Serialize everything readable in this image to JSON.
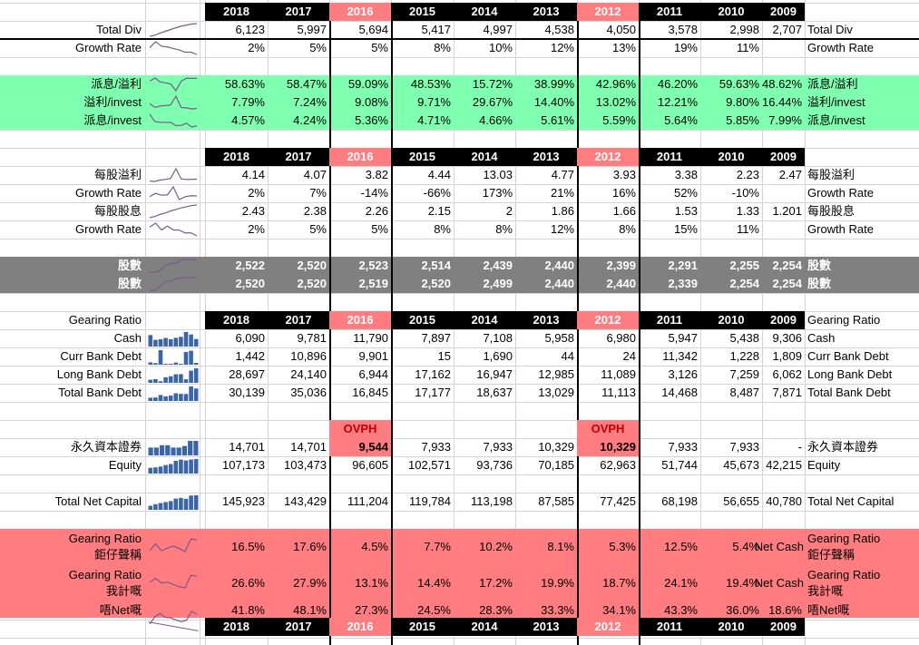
{
  "colors": {
    "header_bg": "#000000",
    "header_fg": "#ffffff",
    "highlight_year": "#ff7c80",
    "green_band": "#7fffb0",
    "gray_band": "#808080",
    "red_band": "#ff7c80",
    "spark_line": "#7a5a8a",
    "spark_bar": "#3a66a8"
  },
  "years": [
    "2018",
    "2017",
    "2016",
    "2015",
    "2014",
    "2013",
    "2012",
    "2011",
    "2010",
    "2009"
  ],
  "highlight_years": [
    "2016",
    "2012"
  ],
  "rows": [
    {
      "key": "total_div",
      "label": "Total Div",
      "right": "Total Div",
      "spark": "line",
      "values": [
        "6,123",
        "5,997",
        "5,694",
        "5,417",
        "4,997",
        "4,538",
        "4,050",
        "3,578",
        "2,998",
        "2,707"
      ]
    },
    {
      "key": "div_growth",
      "label": "Growth Rate",
      "right": "Growth Rate",
      "spark": "line",
      "values": [
        "2%",
        "5%",
        "5%",
        "8%",
        "10%",
        "12%",
        "13%",
        "19%",
        "11%",
        ""
      ]
    },
    {
      "key": "payout",
      "label": "派息/溢利",
      "right": "派息/溢利",
      "spark": "line",
      "band": "green",
      "values": [
        "58.63%",
        "58.47%",
        "59.09%",
        "48.53%",
        "15.72%",
        "38.99%",
        "42.96%",
        "46.20%",
        "59.63%",
        "48.62%"
      ]
    },
    {
      "key": "profit_invest",
      "label": "溢利/invest",
      "right": "溢利/invest",
      "spark": "line",
      "band": "green",
      "values": [
        "7.79%",
        "7.24%",
        "9.08%",
        "9.71%",
        "29.67%",
        "14.40%",
        "13.02%",
        "12.21%",
        "9.80%",
        "16.44%"
      ]
    },
    {
      "key": "div_invest",
      "label": "派息/invest",
      "right": "派息/invest",
      "spark": "line",
      "band": "green",
      "values": [
        "4.57%",
        "4.24%",
        "5.36%",
        "4.71%",
        "4.66%",
        "5.61%",
        "5.59%",
        "5.64%",
        "5.85%",
        "7.99%"
      ]
    },
    {
      "key": "eps",
      "label": "每股溢利",
      "right": "每股溢利",
      "spark": "line",
      "values": [
        "4.14",
        "4.07",
        "3.82",
        "4.44",
        "13.03",
        "4.77",
        "3.93",
        "3.38",
        "2.23",
        "2.47"
      ]
    },
    {
      "key": "eps_growth",
      "label": "Growth Rate",
      "right": "Growth Rate",
      "spark": "line",
      "values": [
        "2%",
        "7%",
        "-14%",
        "-66%",
        "173%",
        "21%",
        "16%",
        "52%",
        "-10%",
        ""
      ]
    },
    {
      "key": "dps",
      "label": "每股股息",
      "right": "每股股息",
      "spark": "line",
      "values": [
        "2.43",
        "2.38",
        "2.26",
        "2.15",
        "2",
        "1.86",
        "1.66",
        "1.53",
        "1.33",
        "1.201"
      ]
    },
    {
      "key": "dps_growth",
      "label": "Growth Rate",
      "right": "Growth Rate",
      "spark": "line",
      "values": [
        "2%",
        "5%",
        "5%",
        "8%",
        "8%",
        "12%",
        "8%",
        "15%",
        "11%",
        ""
      ]
    },
    {
      "key": "shares1",
      "label": "股數",
      "right": "股數",
      "spark": "line",
      "band": "gray",
      "values": [
        "2,522",
        "2,520",
        "2,523",
        "2,514",
        "2,439",
        "2,440",
        "2,399",
        "2,291",
        "2,255",
        "2,254"
      ]
    },
    {
      "key": "shares2",
      "label": "股數",
      "right": "股數",
      "spark": "line",
      "band": "gray",
      "values": [
        "2,520",
        "2,520",
        "2,519",
        "2,520",
        "2,499",
        "2,440",
        "2,440",
        "2,339",
        "2,254",
        "2,254"
      ]
    },
    {
      "key": "cash",
      "label": "Cash",
      "right": "Cash",
      "spark": "bar",
      "values": [
        "6,090",
        "9,781",
        "11,790",
        "7,897",
        "7,108",
        "5,958",
        "6,980",
        "5,947",
        "5,438",
        "9,306"
      ]
    },
    {
      "key": "curr_debt",
      "label": "Curr Bank Debt",
      "right": "Curr Bank Debt",
      "spark": "bar",
      "values": [
        "1,442",
        "10,896",
        "9,901",
        "15",
        "1,690",
        "44",
        "24",
        "11,342",
        "1,228",
        "1,809"
      ]
    },
    {
      "key": "long_debt",
      "label": "Long Bank Debt",
      "right": "Long Bank Debt",
      "spark": "bar",
      "values": [
        "28,697",
        "24,140",
        "6,944",
        "17,162",
        "16,947",
        "12,985",
        "11,089",
        "3,126",
        "7,259",
        "6,062"
      ]
    },
    {
      "key": "total_debt",
      "label": "Total Bank Debt",
      "right": "Total Bank Debt",
      "spark": "bar",
      "values": [
        "30,139",
        "35,036",
        "16,845",
        "17,177",
        "18,637",
        "13,029",
        "11,113",
        "14,468",
        "8,487",
        "7,871"
      ]
    },
    {
      "key": "perp",
      "label": "永久資本證券",
      "right": "永久資本證券",
      "spark": "bar",
      "values": [
        "14,701",
        "14,701",
        "9,544",
        "7,933",
        "7,933",
        "10,329",
        "10,329",
        "7,933",
        "7,933",
        "-"
      ]
    },
    {
      "key": "equity",
      "label": "Equity",
      "right": "Equity",
      "spark": "bar",
      "values": [
        "107,173",
        "103,473",
        "96,605",
        "102,571",
        "93,736",
        "70,185",
        "62,963",
        "51,744",
        "45,673",
        "42,215"
      ]
    },
    {
      "key": "net_capital",
      "label": "Total Net Capital",
      "right": "Total Net Capital",
      "spark": "bar",
      "values": [
        "145,923",
        "143,429",
        "111,204",
        "119,784",
        "113,198",
        "87,585",
        "77,425",
        "68,198",
        "56,655",
        "40,780"
      ]
    },
    {
      "key": "gear1",
      "label": "Gearing Ratio 鉅仔聲稱",
      "right": "Gearing Ratio 鉅仔聲稱",
      "spark": "line",
      "band": "red",
      "values": [
        "16.5%",
        "17.6%",
        "4.5%",
        "7.7%",
        "10.2%",
        "8.1%",
        "5.3%",
        "12.5%",
        "5.4%",
        ""
      ]
    },
    {
      "key": "gear2",
      "label": "Gearing Ratio 我計嘅",
      "right": "Gearing Ratio 我計嘅",
      "spark": "line",
      "band": "red",
      "values": [
        "26.6%",
        "27.9%",
        "13.1%",
        "14.4%",
        "17.2%",
        "19.9%",
        "18.7%",
        "24.1%",
        "19.4%",
        ""
      ]
    },
    {
      "key": "gear3",
      "label": "唔Net嘅",
      "right": "唔Net嘅",
      "spark": "line",
      "band": "red",
      "values": [
        "41.8%",
        "48.1%",
        "27.3%",
        "24.5%",
        "28.3%",
        "33.3%",
        "34.1%",
        "43.3%",
        "36.0%",
        "18.6%"
      ]
    }
  ],
  "gearing_header_label": "Gearing Ratio",
  "net_cash_label": "Net Cash",
  "ovph_label": "OVPH"
}
